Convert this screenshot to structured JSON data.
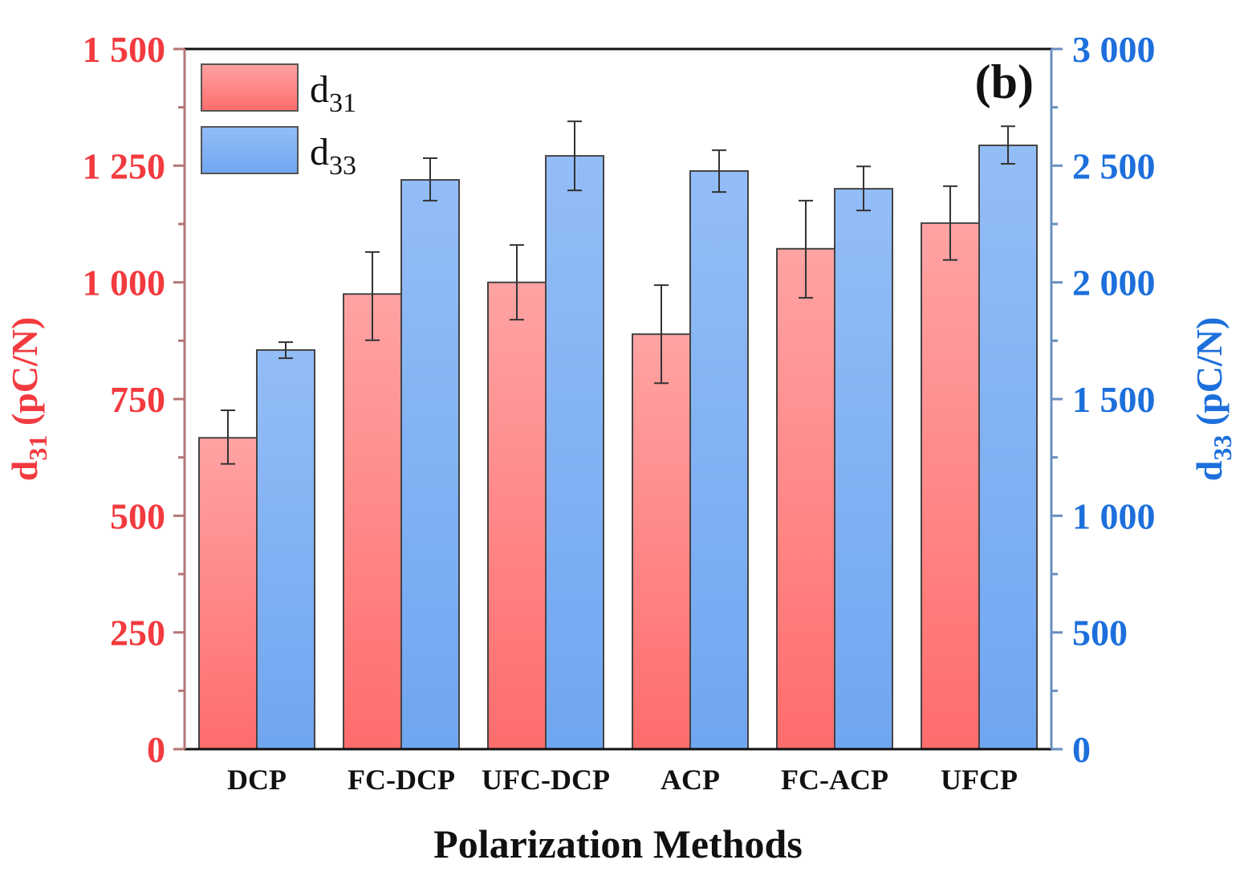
{
  "chart_data": {
    "type": "bar",
    "title": "",
    "panel_label": "(b)",
    "xlabel": "Polarization Methods",
    "ylabel_left": {
      "base": "d",
      "sub": "31",
      "unit": " (pC/N)"
    },
    "ylabel_right": {
      "base": "d",
      "sub": "33",
      "unit": " (pC/N)"
    },
    "categories": [
      "DCP",
      "FC-DCP",
      "UFC-DCP",
      "ACP",
      "FC-ACP",
      "UFCP"
    ],
    "y_left": {
      "lim": [
        0,
        1500
      ],
      "ticks": [
        0,
        250,
        500,
        750,
        1000,
        1250,
        1500
      ],
      "tick_labels": [
        "0",
        "250",
        "500",
        "750",
        "1 000",
        "1 250",
        "1 500"
      ],
      "color": "#f23a3f"
    },
    "y_right": {
      "lim": [
        0,
        3000
      ],
      "ticks": [
        0,
        500,
        1000,
        1500,
        2000,
        2500,
        3000
      ],
      "tick_labels": [
        "0",
        "500",
        "1 000",
        "1 500",
        "2 000",
        "2 500",
        "3 000"
      ],
      "color": "#1d6fdc"
    },
    "grid": false,
    "legend_position": "top-left",
    "series": [
      {
        "name": "d31",
        "legend_base": "d",
        "legend_sub": "31",
        "axis": "left",
        "color_top": "#ffa3a3",
        "color_bottom": "#ff6c6c",
        "values": [
          667,
          975,
          1000,
          889,
          1072,
          1127
        ],
        "err_upper": [
          726,
          1065,
          1080,
          994,
          1175,
          1206
        ],
        "err_lower": [
          611,
          876,
          920,
          784,
          967,
          1048
        ]
      },
      {
        "name": "d33",
        "legend_base": "d",
        "legend_sub": "33",
        "axis": "right",
        "color_top": "#93bdf7",
        "color_bottom": "#70a6f0",
        "values": [
          1710,
          2439,
          2542,
          2477,
          2401,
          2587
        ],
        "err_upper": [
          1744,
          2532,
          2690,
          2566,
          2497,
          2669
        ],
        "err_lower": [
          1675,
          2350,
          2394,
          2387,
          2308,
          2508
        ]
      }
    ]
  }
}
